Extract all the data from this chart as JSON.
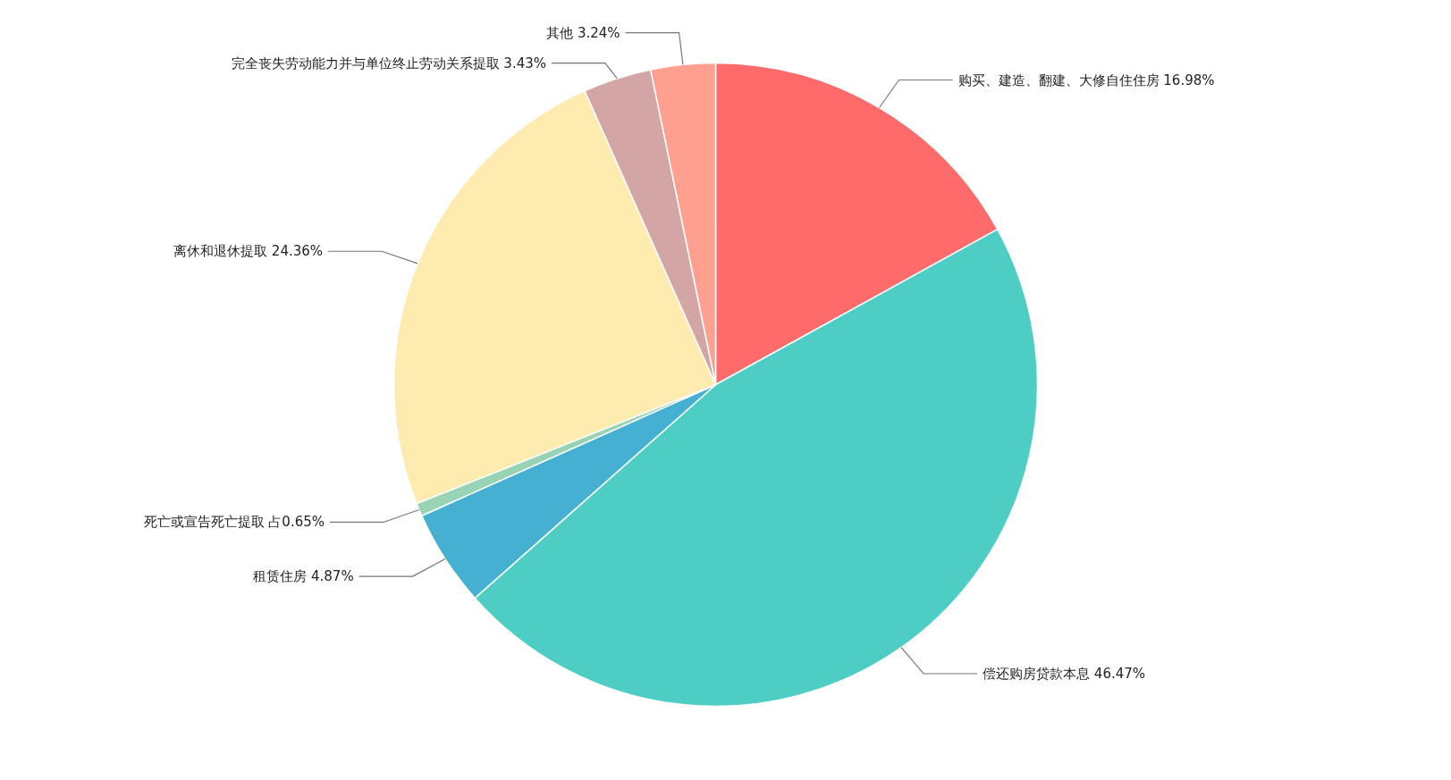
{
  "chart_data": {
    "type": "pie",
    "categories": [
      "购买、建造、翻建、大修自住住房",
      "偿还购房贷款本息",
      "租赁住房",
      "死亡或宣告死亡提取",
      "离休和退休提取",
      "完全丧失劳动能力并与单位终止劳动关系提取",
      "其他"
    ],
    "values": [
      16.98,
      46.47,
      4.87,
      0.65,
      24.36,
      3.43,
      3.24
    ],
    "value_labels": [
      "16.98%",
      "46.47%",
      "4.87%",
      "占0.65%",
      "24.36%",
      "3.43%",
      "3.24%"
    ],
    "colors": [
      "#ff6b6b",
      "#4ecdc4",
      "#45b0d1",
      "#98d3b6",
      "#feebb0",
      "#d4a5a5",
      "#ff9f8f"
    ]
  }
}
